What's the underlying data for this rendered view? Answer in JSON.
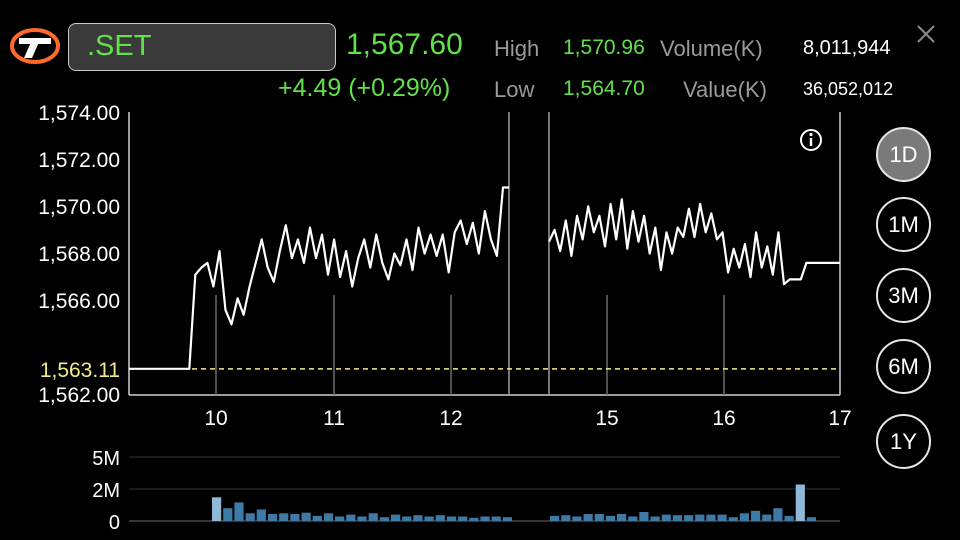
{
  "header": {
    "symbol": ".SET",
    "last_price": "1,567.60",
    "change": "+4.49 (+0.29%)",
    "high_label": "High",
    "high_value": "1,570.96",
    "low_label": "Low",
    "low_value": "1,564.70",
    "volume_label": "Volume(K)",
    "volume_value": "8,011,944",
    "value_label": "Value(K)",
    "value_value": "36,052,012"
  },
  "periods": [
    "1D",
    "1M",
    "3M",
    "6M",
    "1Y"
  ],
  "active_period": "1D",
  "colors": {
    "accent_green": "#62e24a",
    "prev_close_line": "#f2ec8a",
    "volume_bar": "#3e7aa6",
    "volume_bar_tall": "#8fb7d6"
  },
  "icons": {
    "logo": "settrade-logo",
    "close": "close-icon",
    "info": "info-icon"
  },
  "chart_data": [
    {
      "type": "line",
      "title": "",
      "xlabel": "",
      "ylabel": "",
      "x_ticks": [
        "10",
        "11",
        "12",
        "15",
        "16",
        "17"
      ],
      "y_ticks": [
        "1,562.00",
        "1,566.00",
        "1,568.00",
        "1,570.00",
        "1,572.00",
        "1,574.00"
      ],
      "ylim": [
        1562,
        1574
      ],
      "prev_close": 1563.11,
      "prev_close_label": "1,563.11",
      "grid": "vertical",
      "series": [
        {
          "session": "morning",
          "values": [
            1563.11,
            1563.11,
            1563.11,
            1563.11,
            1563.11,
            1563.11,
            1563.11,
            1563.11,
            1563.11,
            1563.11,
            1563.11,
            1567.1,
            1567.4,
            1567.6,
            1566.6,
            1568.1,
            1565.6,
            1565.0,
            1566.1,
            1565.4,
            1566.6,
            1567.6,
            1568.6,
            1567.4,
            1566.8,
            1568.1,
            1569.2,
            1567.8,
            1568.6,
            1567.6,
            1569.1,
            1567.8,
            1568.8,
            1567.1,
            1568.6,
            1567.0,
            1568.1,
            1566.6,
            1567.8,
            1568.6,
            1567.4,
            1568.8,
            1567.6,
            1566.9,
            1568.0,
            1567.5,
            1568.6,
            1567.3,
            1569.1,
            1568.0,
            1568.8,
            1567.9,
            1568.8,
            1567.2,
            1568.9,
            1569.4,
            1568.4,
            1569.3,
            1568.0,
            1569.8,
            1568.6,
            1567.9,
            1570.8,
            1570.8
          ]
        },
        {
          "session": "afternoon",
          "values": [
            1568.5,
            1569.0,
            1568.1,
            1569.4,
            1567.9,
            1569.6,
            1568.6,
            1570.0,
            1568.9,
            1569.6,
            1568.3,
            1570.1,
            1568.6,
            1570.3,
            1568.2,
            1569.8,
            1568.5,
            1569.6,
            1568.0,
            1569.1,
            1567.3,
            1568.9,
            1568.0,
            1569.1,
            1568.7,
            1569.9,
            1568.7,
            1570.1,
            1568.9,
            1569.7,
            1568.6,
            1568.9,
            1567.2,
            1568.2,
            1567.4,
            1568.4,
            1567.0,
            1568.9,
            1567.4,
            1568.3,
            1567.1,
            1568.9,
            1566.7,
            1566.9,
            1566.9,
            1566.9,
            1567.6,
            1567.6,
            1567.6,
            1567.6,
            1567.6,
            1567.6,
            1567.6
          ]
        }
      ]
    },
    {
      "type": "bar",
      "title": "",
      "y_ticks": [
        "0",
        "2M",
        "5M"
      ],
      "ylim": [
        0,
        5
      ],
      "series": [
        {
          "session": "morning",
          "values": [
            1.85,
            1.0,
            1.45,
            0.6,
            0.9,
            0.55,
            0.6,
            0.55,
            0.65,
            0.4,
            0.6,
            0.35,
            0.5,
            0.35,
            0.6,
            0.3,
            0.5,
            0.35,
            0.45,
            0.35,
            0.45,
            0.35,
            0.35,
            0.25,
            0.35,
            0.35,
            0.3
          ]
        },
        {
          "session": "afternoon",
          "values": [
            0.4,
            0.45,
            0.35,
            0.55,
            0.55,
            0.4,
            0.55,
            0.35,
            0.7,
            0.35,
            0.5,
            0.45,
            0.45,
            0.5,
            0.5,
            0.5,
            0.3,
            0.6,
            0.8,
            0.5,
            1.0,
            0.4,
            2.85,
            0.3
          ]
        }
      ]
    }
  ]
}
